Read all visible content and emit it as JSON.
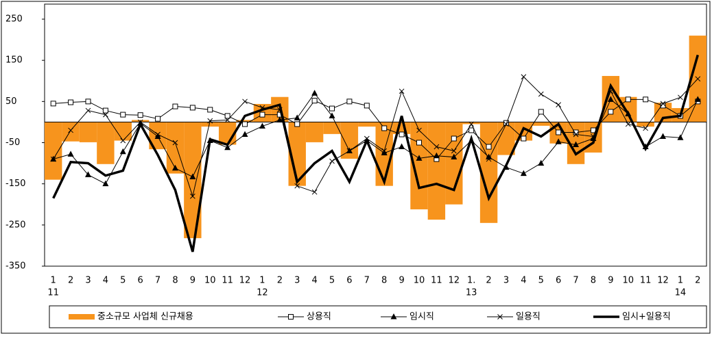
{
  "chart_data": {
    "type": "combo",
    "categories": [
      "1",
      "2",
      "3",
      "4",
      "5",
      "6",
      "7",
      "8",
      "9",
      "10",
      "11",
      "12",
      "1",
      "2",
      "3",
      "4",
      "5",
      "6",
      "7",
      "8",
      "9",
      "10",
      "11",
      "12",
      "1.",
      "2",
      "3",
      "4",
      "5",
      "6",
      "7",
      "8",
      "9",
      "10",
      "11",
      "12",
      "1",
      "2"
    ],
    "years": [
      "11",
      null,
      null,
      null,
      null,
      null,
      null,
      null,
      null,
      null,
      null,
      null,
      "12",
      null,
      null,
      null,
      null,
      null,
      null,
      null,
      null,
      null,
      null,
      null,
      "13",
      null,
      null,
      null,
      null,
      null,
      null,
      null,
      null,
      null,
      null,
      null,
      "14",
      null
    ],
    "ylim": [
      -350,
      250
    ],
    "yticks": [
      -350,
      -250,
      -150,
      -50,
      50,
      150,
      250
    ],
    "series": [
      {
        "name": "중소규모 사업체 신규채용",
        "type": "bar",
        "color": "#f7941d",
        "values": [
          -140,
          -47,
          -49,
          -102,
          -45,
          5,
          -66,
          -125,
          -282,
          -11,
          -55,
          5,
          44,
          61,
          -155,
          -49,
          -29,
          -89,
          -11,
          -155,
          -29,
          -212,
          -237,
          -200,
          -5,
          -245,
          -80,
          -45,
          -9,
          -52,
          -102,
          -74,
          112,
          61,
          -11,
          47,
          34,
          210
        ]
      },
      {
        "name": "상용직",
        "type": "line",
        "marker": "square",
        "color": "#000000",
        "width": 1,
        "values": [
          45,
          48,
          50,
          28,
          18,
          17,
          8,
          38,
          35,
          30,
          15,
          -5,
          18,
          18,
          -5,
          52,
          33,
          50,
          40,
          -15,
          -30,
          -50,
          -90,
          -40,
          -20,
          -60,
          -2,
          -40,
          25,
          -25,
          -25,
          -20,
          25,
          55,
          55,
          40,
          15,
          50
        ]
      },
      {
        "name": "임시직",
        "type": "line",
        "marker": "triangle",
        "color": "#000000",
        "width": 1,
        "values": [
          -90,
          -78,
          -128,
          -150,
          -72,
          -3,
          -35,
          -112,
          -133,
          -45,
          -62,
          -30,
          -10,
          5,
          10,
          70,
          15,
          -70,
          -45,
          -75,
          -60,
          -88,
          -82,
          -85,
          -45,
          -85,
          -110,
          -125,
          -100,
          -48,
          -55,
          -40,
          55,
          20,
          -60,
          -35,
          -38,
          55
        ]
      },
      {
        "name": "일용직",
        "type": "line",
        "marker": "x",
        "color": "#000000",
        "width": 1,
        "values": [
          -90,
          -20,
          28,
          18,
          -45,
          0,
          -30,
          -50,
          -180,
          3,
          5,
          50,
          35,
          30,
          -155,
          -170,
          -95,
          -70,
          -40,
          -70,
          75,
          -20,
          -60,
          -70,
          -5,
          -90,
          -5,
          110,
          68,
          42,
          -30,
          -35,
          75,
          -5,
          -15,
          45,
          60,
          105
        ]
      },
      {
        "name": "임시+일용직",
        "type": "line",
        "marker": "none",
        "color": "#000000",
        "width": 3.5,
        "values": [
          -185,
          -97,
          -100,
          -130,
          -118,
          -5,
          -80,
          -165,
          -315,
          -42,
          -55,
          15,
          30,
          42,
          -145,
          -100,
          -70,
          -145,
          -45,
          -145,
          15,
          -160,
          -150,
          -165,
          -40,
          -185,
          -105,
          -15,
          -35,
          -5,
          -78,
          -50,
          88,
          20,
          -65,
          10,
          15,
          163
        ]
      }
    ]
  }
}
